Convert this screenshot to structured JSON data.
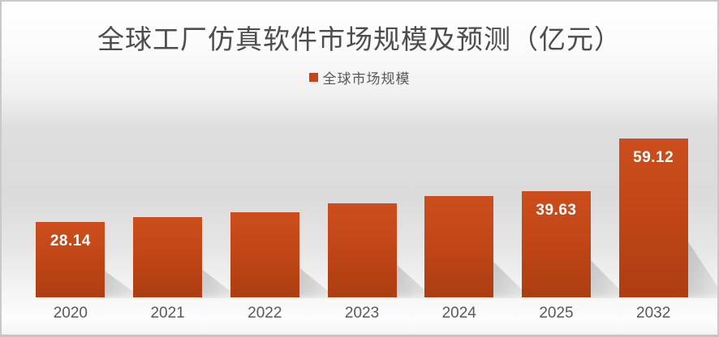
{
  "title": "全球工厂仿真软件市场规模及预测（亿元）",
  "legend": {
    "label": "全球市场规模",
    "swatch_color": "#c0461b"
  },
  "colors": {
    "bar_gradient_top": "#cc4e1c",
    "bar_gradient_bottom": "#ac3e12",
    "value_label_text": "#ffffff",
    "axis_label_text": "#595959",
    "title_text": "#4d4d4d",
    "border": "#c9c9c9"
  },
  "chart_data": {
    "type": "bar",
    "title": "全球工厂仿真软件市场规模及预测（亿元）",
    "categories": [
      "2020",
      "2021",
      "2022",
      "2023",
      "2024",
      "2025",
      "2032"
    ],
    "series": [
      {
        "name": "全球市场规模",
        "values": [
          28.14,
          29.9,
          31.8,
          35.1,
          37.8,
          39.63,
          59.12
        ]
      }
    ],
    "data_labels": [
      "28.14",
      "",
      "",
      "",
      "",
      "39.63",
      "59.12"
    ],
    "xlabel": "",
    "ylabel": "",
    "ylim": [
      0,
      65
    ],
    "grid": false,
    "legend_position": "top",
    "y_axis_visible": false
  }
}
